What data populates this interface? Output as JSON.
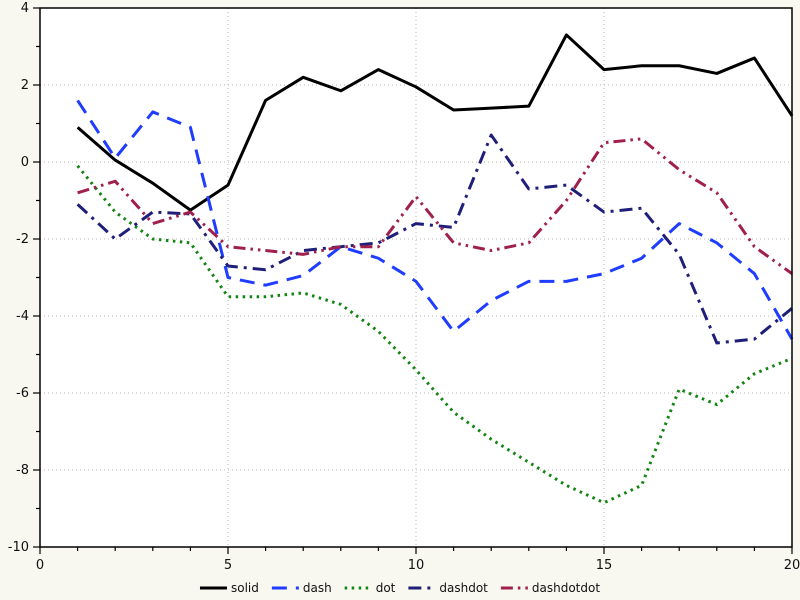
{
  "page": {
    "background": "#f8f8f0",
    "plot_background": "#ffffff",
    "frame_color": "#000000",
    "grid_color": "#b9b9b9"
  },
  "chart_data": {
    "type": "line",
    "title": "",
    "xlabel": "",
    "ylabel": "",
    "xlim": [
      0,
      20
    ],
    "ylim": [
      -10,
      4
    ],
    "x_ticks": [
      0,
      5,
      10,
      15,
      20
    ],
    "y_ticks": [
      4,
      2,
      0,
      -2,
      -4,
      -6,
      -8,
      -10
    ],
    "grid": true,
    "legend_position": "bottom-center",
    "x": [
      1,
      2,
      3,
      4,
      5,
      6,
      7,
      8,
      9,
      10,
      11,
      12,
      13,
      14,
      15,
      16,
      17,
      18,
      19,
      20
    ],
    "series": [
      {
        "name": "solid",
        "color": "#000000",
        "dash": "solid",
        "values": [
          0.9,
          0.05,
          -0.55,
          -1.25,
          -0.6,
          1.6,
          2.2,
          1.85,
          2.4,
          1.95,
          1.35,
          1.4,
          1.45,
          3.3,
          2.4,
          2.5,
          2.5,
          2.3,
          2.7,
          1.2
        ]
      },
      {
        "name": "dash",
        "color": "#1f3dff",
        "dash": "dash",
        "values": [
          1.6,
          0.1,
          1.3,
          0.9,
          -3.0,
          -3.2,
          -2.95,
          -2.2,
          -2.5,
          -3.1,
          -4.4,
          -3.6,
          -3.1,
          -3.1,
          -2.9,
          -2.5,
          -1.6,
          -2.1,
          -2.9,
          -4.6
        ]
      },
      {
        "name": "dot",
        "color": "#128412",
        "dash": "dot",
        "values": [
          -0.1,
          -1.3,
          -2.0,
          -2.1,
          -3.5,
          -3.5,
          -3.4,
          -3.7,
          -4.4,
          -5.4,
          -6.5,
          -7.2,
          -7.8,
          -8.4,
          -8.85,
          -8.4,
          -5.9,
          -6.3,
          -5.5,
          -5.1
        ]
      },
      {
        "name": "dashdot",
        "color": "#1f1f7a",
        "dash": "dashdot",
        "values": [
          -1.1,
          -2.0,
          -1.3,
          -1.35,
          -2.7,
          -2.8,
          -2.3,
          -2.2,
          -2.1,
          -1.6,
          -1.7,
          0.7,
          -0.7,
          -0.6,
          -1.3,
          -1.2,
          -2.4,
          -4.7,
          -4.6,
          -3.8
        ]
      },
      {
        "name": "dashdotdot",
        "color": "#a0204c",
        "dash": "dashdotdot",
        "values": [
          -0.8,
          -0.5,
          -1.6,
          -1.3,
          -2.2,
          -2.3,
          -2.4,
          -2.2,
          -2.2,
          -0.9,
          -2.1,
          -2.3,
          -2.1,
          -1.0,
          0.5,
          0.6,
          -0.2,
          -0.8,
          -2.2,
          -2.9
        ]
      }
    ]
  }
}
